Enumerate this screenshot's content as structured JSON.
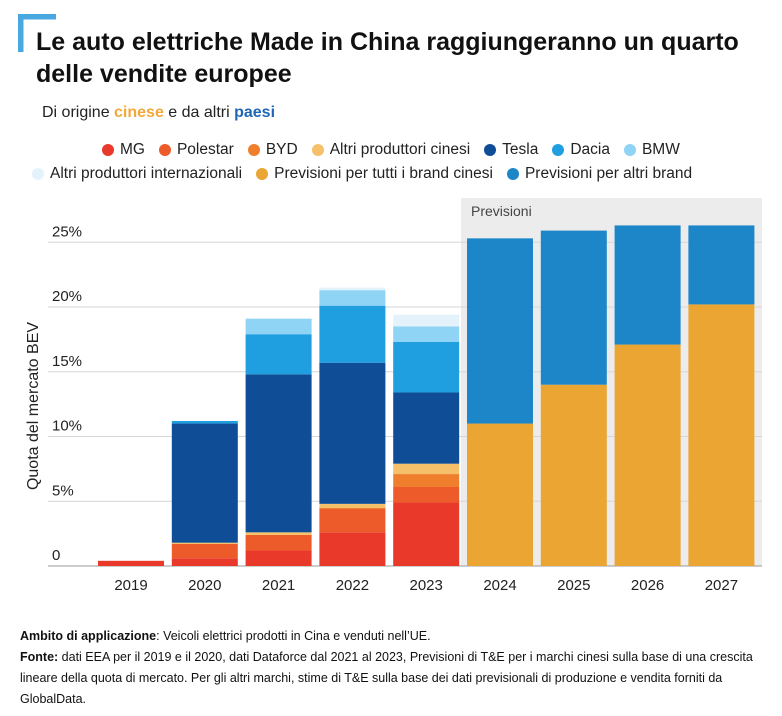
{
  "title": "Le auto elettriche Made in China raggiungeranno un quarto delle vendite europee",
  "subtitle": {
    "part1": "Di origine ",
    "highlight1": "cinese",
    "part2": " e da altri ",
    "highlight2": "paesi"
  },
  "accent_colors": {
    "corner": "#4aa8e0",
    "orange": "#f2a93b",
    "blue": "#1f67b4"
  },
  "legend": [
    {
      "label": "MG",
      "color": "#e8392a"
    },
    {
      "label": "Polestar",
      "color": "#ee5b2a"
    },
    {
      "label": "BYD",
      "color": "#ef7f2c"
    },
    {
      "label": "Altri produttori cinesi",
      "color": "#f6c06a"
    },
    {
      "label": "Tesla",
      "color": "#0f4d96"
    },
    {
      "label": "Dacia",
      "color": "#1f9fe0"
    },
    {
      "label": "BMW",
      "color": "#8fd3f5"
    },
    {
      "label": "Altri produttori internazionali",
      "color": "#e4f3fb"
    },
    {
      "label": "Previsioni per tutti i brand cinesi",
      "color": "#eaa533"
    },
    {
      "label": "Previsioni per altri brand",
      "color": "#1c86c8"
    }
  ],
  "chart_data": {
    "type": "bar",
    "stacked": true,
    "categories": [
      "2019",
      "2020",
      "2021",
      "2022",
      "2023",
      "2024",
      "2025",
      "2026",
      "2027"
    ],
    "ylabel": "Quota del mercato BEV",
    "ylim": [
      0,
      25
    ],
    "yticks": [
      0,
      5,
      10,
      15,
      20,
      25
    ],
    "ytick_labels": [
      "0",
      "5%",
      "10%",
      "15%",
      "20%",
      "25%"
    ],
    "grid": true,
    "forecast_label": "Previsioni",
    "forecast_start": "2024",
    "series": [
      {
        "name": "MG",
        "color": "#e8392a",
        "values": [
          0.4,
          0.6,
          1.2,
          2.6,
          4.9,
          0,
          0,
          0,
          0
        ]
      },
      {
        "name": "Polestar",
        "color": "#ee5b2a",
        "values": [
          0,
          1.1,
          1.2,
          1.8,
          1.2,
          0,
          0,
          0,
          0
        ]
      },
      {
        "name": "BYD",
        "color": "#ef7f2c",
        "values": [
          0,
          0,
          0,
          0.1,
          1.0,
          0,
          0,
          0,
          0
        ]
      },
      {
        "name": "Altri produttori cinesi",
        "color": "#f6c06a",
        "values": [
          0,
          0.1,
          0.2,
          0.3,
          0.8,
          0,
          0,
          0,
          0
        ]
      },
      {
        "name": "Tesla",
        "color": "#0f4d96",
        "values": [
          0,
          9.2,
          12.2,
          10.9,
          5.5,
          0,
          0,
          0,
          0
        ]
      },
      {
        "name": "Dacia",
        "color": "#1f9fe0",
        "values": [
          0,
          0.2,
          3.1,
          4.4,
          3.9,
          0,
          0,
          0,
          0
        ]
      },
      {
        "name": "BMW",
        "color": "#8fd3f5",
        "values": [
          0,
          0,
          1.2,
          1.2,
          1.2,
          0,
          0,
          0,
          0
        ]
      },
      {
        "name": "Altri produttori internazionali",
        "color": "#e4f3fb",
        "values": [
          0,
          0,
          0,
          0.2,
          0.9,
          0,
          0,
          0,
          0
        ]
      },
      {
        "name": "Previsioni per tutti i brand cinesi",
        "color": "#eaa533",
        "values": [
          0,
          0,
          0,
          0,
          0,
          11.0,
          14.0,
          17.1,
          20.2
        ]
      },
      {
        "name": "Previsioni per altri brand",
        "color": "#1c86c8",
        "values": [
          0,
          0,
          0,
          0,
          0,
          14.3,
          11.9,
          9.2,
          6.1
        ]
      }
    ]
  },
  "footer": {
    "scope_label": "Ambito di applicazione",
    "scope_text": ": Veicoli elettrici prodotti in Cina e venduti nell’UE.",
    "source_label": "Fonte:",
    "source_text": " dati EEA per il 2019 e il 2020, dati Dataforce dal 2021 al 2023, Previsioni di T&E per i marchi cinesi sulla base di una crescita lineare della quota di mercato. Per gli altri marchi, stime di T&E sulla base dei dati previsionali di produzione e vendita forniti da GlobalData."
  }
}
